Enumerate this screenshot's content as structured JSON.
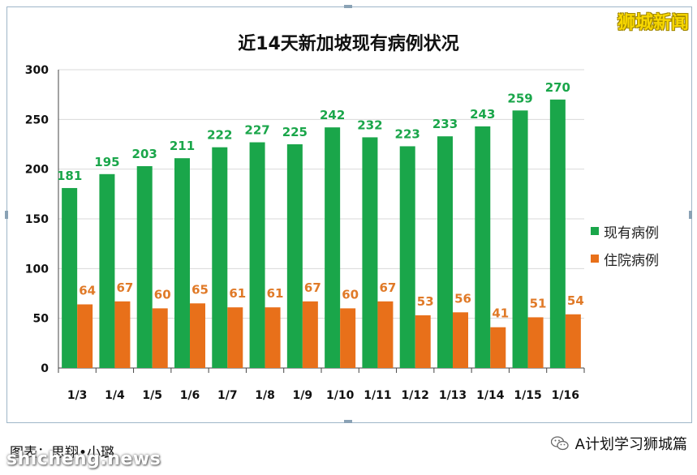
{
  "brand": "狮城新闻",
  "footer": {
    "credit": "图表：思翔•小璐",
    "watermark": "shicheng.news",
    "account_name": "A计划学习狮城篇"
  },
  "chart_data": {
    "type": "bar",
    "title": "近14天新加坡现有病例状况",
    "categories": [
      "1/3",
      "1/4",
      "1/5",
      "1/6",
      "1/7",
      "1/8",
      "1/9",
      "1/10",
      "1/11",
      "1/12",
      "1/13",
      "1/14",
      "1/15",
      "1/16"
    ],
    "series": [
      {
        "name": "现有病例",
        "color": "#1aa64a",
        "label_color": "#1aa64a",
        "values": [
          181,
          195,
          203,
          211,
          222,
          227,
          225,
          242,
          232,
          223,
          233,
          243,
          259,
          270
        ]
      },
      {
        "name": "住院病例",
        "color": "#e8701a",
        "label_color": "#e07a28",
        "values": [
          64,
          67,
          60,
          65,
          61,
          61,
          67,
          60,
          67,
          53,
          56,
          41,
          51,
          54
        ]
      }
    ],
    "ylim": [
      0,
      300
    ],
    "yticks": [
      0,
      50,
      100,
      150,
      200,
      250,
      300
    ],
    "grid": true,
    "legend_position": "right"
  }
}
